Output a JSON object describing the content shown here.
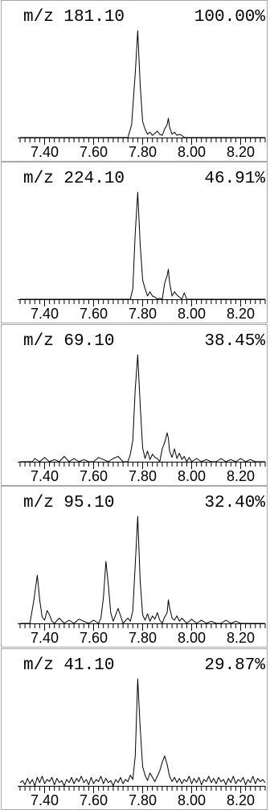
{
  "chart_data": [
    {
      "type": "line",
      "mz_label": "m/z 181.10",
      "percent_label": "100.00%",
      "xlim": [
        7.3,
        8.3
      ],
      "ylim": [
        0,
        100
      ],
      "x_ticks": [
        "7.40",
        "7.60",
        "7.80",
        "8.00",
        "8.20"
      ],
      "x": [
        7.3,
        7.74,
        7.755,
        7.77,
        7.78,
        7.79,
        7.8,
        7.81,
        7.82,
        7.83,
        7.84,
        7.85,
        7.86,
        7.87,
        7.88,
        7.89,
        7.9,
        7.905,
        7.91,
        7.92,
        7.93,
        7.94,
        7.95,
        7.96,
        7.97,
        8.3
      ],
      "y": [
        0,
        0,
        12,
        60,
        100,
        50,
        15,
        8,
        3,
        5,
        2,
        4,
        6,
        3,
        2,
        8,
        12,
        18,
        10,
        3,
        5,
        2,
        3,
        2,
        0,
        0
      ]
    },
    {
      "type": "line",
      "mz_label": "m/z 224.10",
      "percent_label": "46.91%",
      "xlim": [
        7.3,
        8.3
      ],
      "ylim": [
        0,
        100
      ],
      "x_ticks": [
        "7.40",
        "7.60",
        "7.80",
        "8.00",
        "8.20"
      ],
      "x": [
        7.3,
        7.75,
        7.76,
        7.77,
        7.78,
        7.79,
        7.8,
        7.81,
        7.82,
        7.83,
        7.84,
        7.85,
        7.86,
        7.87,
        7.88,
        7.89,
        7.9,
        7.905,
        7.91,
        7.92,
        7.93,
        7.94,
        7.95,
        7.96,
        7.97,
        7.98,
        8.3
      ],
      "y": [
        0,
        0,
        10,
        62,
        100,
        52,
        18,
        10,
        3,
        7,
        3,
        2,
        0,
        1,
        0,
        15,
        22,
        28,
        16,
        3,
        7,
        4,
        2,
        0,
        6,
        0,
        0
      ]
    },
    {
      "type": "line",
      "mz_label": "m/z 69.10",
      "percent_label": "38.45%",
      "xlim": [
        7.3,
        8.3
      ],
      "ylim": [
        0,
        100
      ],
      "x_ticks": [
        "7.40",
        "7.60",
        "7.80",
        "8.00",
        "8.20"
      ],
      "x": [
        7.3,
        7.35,
        7.36,
        7.38,
        7.4,
        7.42,
        7.44,
        7.46,
        7.48,
        7.5,
        7.52,
        7.54,
        7.56,
        7.58,
        7.6,
        7.62,
        7.64,
        7.66,
        7.68,
        7.7,
        7.72,
        7.74,
        7.75,
        7.76,
        7.77,
        7.78,
        7.79,
        7.8,
        7.81,
        7.82,
        7.83,
        7.84,
        7.85,
        7.86,
        7.87,
        7.88,
        7.89,
        7.9,
        7.905,
        7.91,
        7.92,
        7.93,
        7.94,
        7.95,
        7.96,
        7.97,
        7.98,
        7.99,
        8.0,
        8.02,
        8.04,
        8.06,
        8.08,
        8.1,
        8.12,
        8.14,
        8.16,
        8.18,
        8.2,
        8.22,
        8.24,
        8.26,
        8.28,
        8.3
      ],
      "y": [
        0,
        0,
        3,
        0,
        4,
        0,
        2,
        0,
        5,
        0,
        3,
        0,
        2,
        0,
        0,
        4,
        2,
        0,
        3,
        5,
        0,
        0,
        7,
        20,
        68,
        100,
        54,
        13,
        3,
        10,
        2,
        7,
        4,
        3,
        0,
        12,
        18,
        27,
        22,
        10,
        4,
        12,
        3,
        8,
        2,
        5,
        0,
        4,
        0,
        3,
        0,
        2,
        0,
        0,
        3,
        0,
        2,
        0,
        3,
        0,
        2,
        0,
        0,
        0
      ]
    },
    {
      "type": "line",
      "mz_label": "m/z 95.10",
      "percent_label": "32.40%",
      "xlim": [
        7.3,
        8.3
      ],
      "ylim": [
        0,
        100
      ],
      "x_ticks": [
        "7.40",
        "7.60",
        "7.80",
        "8.00",
        "8.20"
      ],
      "x": [
        7.3,
        7.34,
        7.355,
        7.37,
        7.38,
        7.39,
        7.4,
        7.41,
        7.42,
        7.43,
        7.44,
        7.46,
        7.48,
        7.5,
        7.52,
        7.54,
        7.56,
        7.58,
        7.6,
        7.62,
        7.63,
        7.64,
        7.65,
        7.66,
        7.67,
        7.68,
        7.7,
        7.72,
        7.74,
        7.75,
        7.76,
        7.77,
        7.78,
        7.79,
        7.8,
        7.81,
        7.82,
        7.83,
        7.84,
        7.85,
        7.86,
        7.87,
        7.88,
        7.89,
        7.9,
        7.905,
        7.91,
        7.92,
        7.93,
        7.94,
        7.95,
        7.96,
        7.98,
        8.0,
        8.02,
        8.04,
        8.06,
        8.08,
        8.1,
        8.12,
        8.14,
        8.16,
        8.18,
        8.2,
        8.22,
        8.24,
        8.3
      ],
      "y": [
        0,
        0,
        20,
        45,
        22,
        6,
        3,
        12,
        8,
        2,
        0,
        5,
        0,
        3,
        0,
        4,
        2,
        0,
        3,
        0,
        5,
        24,
        58,
        36,
        10,
        2,
        14,
        0,
        5,
        2,
        12,
        55,
        100,
        40,
        8,
        3,
        9,
        2,
        7,
        4,
        10,
        3,
        0,
        6,
        10,
        22,
        15,
        5,
        3,
        7,
        2,
        5,
        0,
        4,
        0,
        3,
        0,
        2,
        0,
        0,
        3,
        0,
        2,
        0,
        0,
        0,
        0
      ]
    },
    {
      "type": "line",
      "mz_label": "m/z 41.10",
      "percent_label": "29.87%",
      "xlim": [
        7.3,
        8.3
      ],
      "ylim": [
        0,
        100
      ],
      "x_ticks": [
        "7.40",
        "7.60",
        "7.80",
        "8.00",
        "8.20"
      ],
      "x": [
        7.3,
        7.31,
        7.32,
        7.33,
        7.34,
        7.35,
        7.36,
        7.37,
        7.38,
        7.39,
        7.4,
        7.41,
        7.42,
        7.43,
        7.44,
        7.45,
        7.46,
        7.47,
        7.48,
        7.49,
        7.5,
        7.51,
        7.52,
        7.53,
        7.54,
        7.55,
        7.56,
        7.57,
        7.58,
        7.59,
        7.6,
        7.61,
        7.62,
        7.63,
        7.64,
        7.65,
        7.66,
        7.67,
        7.68,
        7.69,
        7.7,
        7.71,
        7.72,
        7.73,
        7.74,
        7.75,
        7.76,
        7.77,
        7.78,
        7.79,
        7.8,
        7.81,
        7.82,
        7.83,
        7.84,
        7.85,
        7.86,
        7.87,
        7.88,
        7.89,
        7.9,
        7.91,
        7.92,
        7.93,
        7.94,
        7.95,
        7.96,
        7.97,
        7.98,
        7.99,
        8.0,
        8.01,
        8.02,
        8.03,
        8.04,
        8.05,
        8.06,
        8.07,
        8.08,
        8.09,
        8.1,
        8.11,
        8.12,
        8.13,
        8.14,
        8.15,
        8.16,
        8.17,
        8.18,
        8.19,
        8.2,
        8.21,
        8.22,
        8.23,
        8.24,
        8.25,
        8.26,
        8.27,
        8.28,
        8.29,
        8.3
      ],
      "y": [
        3,
        5,
        1,
        7,
        2,
        6,
        0,
        8,
        3,
        9,
        2,
        6,
        4,
        8,
        1,
        7,
        3,
        5,
        0,
        6,
        3,
        8,
        2,
        7,
        4,
        9,
        3,
        6,
        1,
        8,
        2,
        6,
        4,
        9,
        2,
        7,
        3,
        5,
        0,
        6,
        3,
        8,
        2,
        6,
        4,
        10,
        6,
        28,
        100,
        55,
        18,
        10,
        5,
        12,
        8,
        4,
        9,
        14,
        22,
        28,
        20,
        9,
        4,
        8,
        3,
        7,
        2,
        6,
        4,
        9,
        2,
        7,
        3,
        8,
        1,
        6,
        4,
        9,
        3,
        7,
        2,
        8,
        4,
        6,
        1,
        7,
        3,
        9,
        2,
        6,
        4,
        8,
        1,
        6,
        3,
        9,
        2,
        7,
        4,
        6,
        3
      ]
    }
  ]
}
